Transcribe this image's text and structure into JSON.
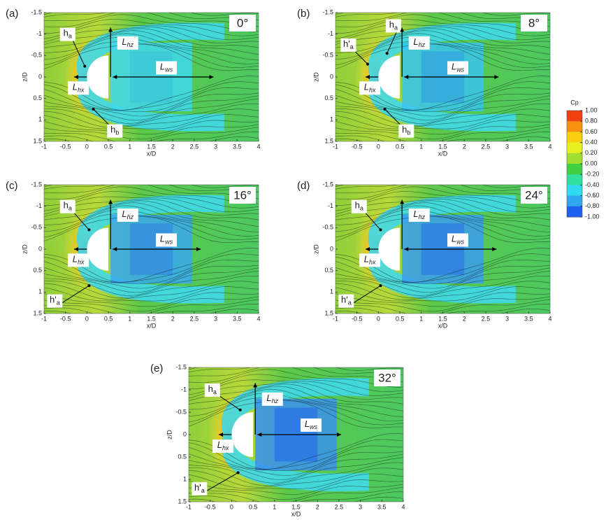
{
  "chart_data": [
    {
      "type": "streamline_contour",
      "panel_label": "(a)",
      "angle_label": "0°",
      "xlabel": "x/D",
      "ylabel": "z/D",
      "xlim": [
        -1,
        4
      ],
      "ylim": [
        1.5,
        -1.5
      ],
      "xticks": [
        -1,
        -0.5,
        0,
        0.5,
        1,
        1.5,
        2,
        2.5,
        3,
        3.5,
        4
      ],
      "yticks": [
        -1.5,
        -1,
        -0.5,
        0,
        0.5,
        1,
        1.5
      ],
      "annotations": [
        {
          "text": "h",
          "sub": "a"
        },
        {
          "text": "L",
          "sub": "hz"
        },
        {
          "text": "L",
          "sub": "ws"
        },
        {
          "text": "L",
          "sub": "hx"
        },
        {
          "text": "h",
          "sub": "b"
        }
      ]
    },
    {
      "type": "streamline_contour",
      "panel_label": "(b)",
      "angle_label": "8°",
      "xlabel": "x/D",
      "ylabel": "z/D",
      "xlim": [
        -1,
        4
      ],
      "ylim": [
        1.5,
        -1.5
      ],
      "xticks": [
        -1,
        -0.5,
        0,
        0.5,
        1,
        1.5,
        2,
        2.5,
        3,
        3.5,
        4
      ],
      "yticks": [
        -1.5,
        -1,
        -0.5,
        0,
        0.5,
        1,
        1.5
      ],
      "annotations": [
        {
          "text": "h",
          "sub": "a"
        },
        {
          "text": "h'",
          "sub": "a"
        },
        {
          "text": "L",
          "sub": "hz"
        },
        {
          "text": "L",
          "sub": "ws"
        },
        {
          "text": "L",
          "sub": "hx"
        },
        {
          "text": "h",
          "sub": "b"
        }
      ]
    },
    {
      "type": "streamline_contour",
      "panel_label": "(c)",
      "angle_label": "16°",
      "xlabel": "x/D",
      "ylabel": "z/D",
      "xlim": [
        -1,
        4
      ],
      "ylim": [
        1.5,
        -1.5
      ],
      "xticks": [
        -1,
        -0.5,
        0,
        0.5,
        1,
        1.5,
        2,
        2.5,
        3,
        3.5,
        4
      ],
      "yticks": [
        -1.5,
        -1,
        -0.5,
        0,
        0.5,
        1,
        1.5
      ],
      "annotations": [
        {
          "text": "h",
          "sub": "a"
        },
        {
          "text": "L",
          "sub": "hz"
        },
        {
          "text": "L",
          "sub": "ws"
        },
        {
          "text": "L",
          "sub": "hx"
        },
        {
          "text": "h'",
          "sub": "a"
        }
      ]
    },
    {
      "type": "streamline_contour",
      "panel_label": "(d)",
      "angle_label": "24°",
      "xlabel": "x/D",
      "ylabel": "z/D",
      "xlim": [
        -1,
        4
      ],
      "ylim": [
        1.5,
        -1.5
      ],
      "xticks": [
        -1,
        -0.5,
        0,
        0.5,
        1,
        1.5,
        2,
        2.5,
        3,
        3.5,
        4
      ],
      "yticks": [
        -1.5,
        -1,
        -0.5,
        0,
        0.5,
        1,
        1.5
      ],
      "annotations": [
        {
          "text": "h",
          "sub": "a"
        },
        {
          "text": "L",
          "sub": "hz"
        },
        {
          "text": "L",
          "sub": "ws"
        },
        {
          "text": "L",
          "sub": "hx"
        },
        {
          "text": "h'",
          "sub": "a"
        }
      ]
    },
    {
      "type": "streamline_contour",
      "panel_label": "(e)",
      "angle_label": "32°",
      "xlabel": "x/D",
      "ylabel": "z/D",
      "xlim": [
        -1,
        4
      ],
      "ylim": [
        1.5,
        -1.5
      ],
      "xticks": [
        -1,
        -0.5,
        0,
        0.5,
        1,
        1.5,
        2,
        2.5,
        3,
        3.5,
        4
      ],
      "yticks": [
        -1.5,
        -1,
        -0.5,
        0,
        0.5,
        1,
        1.5
      ],
      "annotations": [
        {
          "text": "h",
          "sub": "a"
        },
        {
          "text": "L",
          "sub": "hz"
        },
        {
          "text": "L",
          "sub": "ws"
        },
        {
          "text": "L",
          "sub": "hx"
        },
        {
          "text": "h'",
          "sub": "a"
        }
      ]
    }
  ],
  "colorbar": {
    "title": "Cp",
    "lim": [
      -1,
      1
    ],
    "ticks": [
      {
        "value": 1,
        "label": "1.00"
      },
      {
        "value": 0.8,
        "label": "0.80"
      },
      {
        "value": 0.6,
        "label": "0.60"
      },
      {
        "value": 0.4,
        "label": "0.40"
      },
      {
        "value": 0.2,
        "label": "0.20"
      },
      {
        "value": 0,
        "label": "0.00"
      },
      {
        "value": -0.2,
        "label": "-0.20"
      },
      {
        "value": -0.4,
        "label": "-0.40"
      },
      {
        "value": -0.6,
        "label": "-0.60"
      },
      {
        "value": -0.8,
        "label": "-0.80"
      },
      {
        "value": -1,
        "label": "-1.00"
      }
    ],
    "colors": [
      "#f04010",
      "#f89010",
      "#f8d010",
      "#e8f020",
      "#a0e030",
      "#40d040",
      "#30e0a0",
      "#30d8f0",
      "#30a8f0",
      "#2060f0"
    ]
  }
}
